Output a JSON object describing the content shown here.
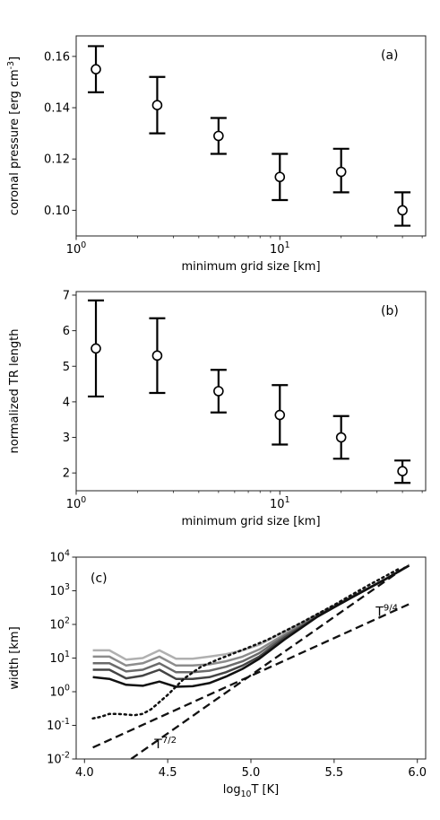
{
  "chart_data": [
    {
      "type": "scatter",
      "panel_label": "(a)",
      "xlabel": "minimum grid size [km]",
      "ylabel": "coronal pressure [erg cm^-3]",
      "xscale": "log",
      "xlim": [
        1,
        52
      ],
      "ylim": [
        0.09,
        0.168
      ],
      "xticks": [
        {
          "value": 1,
          "label": "10^0"
        },
        {
          "value": 10,
          "label": "10^1"
        }
      ],
      "yticks": [
        0.1,
        0.12,
        0.14,
        0.16
      ],
      "ytick_labels": [
        "0.10",
        "0.12",
        "0.14",
        "0.16"
      ],
      "points": [
        {
          "x": 1.25,
          "y": 0.155,
          "err_low": 0.146,
          "err_high": 0.164
        },
        {
          "x": 2.5,
          "y": 0.141,
          "err_low": 0.13,
          "err_high": 0.152
        },
        {
          "x": 5,
          "y": 0.129,
          "err_low": 0.122,
          "err_high": 0.136
        },
        {
          "x": 10,
          "y": 0.113,
          "err_low": 0.104,
          "err_high": 0.122
        },
        {
          "x": 20,
          "y": 0.115,
          "err_low": 0.107,
          "err_high": 0.124
        },
        {
          "x": 40,
          "y": 0.1,
          "err_low": 0.094,
          "err_high": 0.107
        }
      ]
    },
    {
      "type": "scatter",
      "panel_label": "(b)",
      "xlabel": "minimum grid size [km]",
      "ylabel": "normalized TR length",
      "xscale": "log",
      "xlim": [
        1,
        52
      ],
      "ylim": [
        1.5,
        7.1
      ],
      "xticks": [
        {
          "value": 1,
          "label": "10^0"
        },
        {
          "value": 10,
          "label": "10^1"
        }
      ],
      "yticks": [
        2,
        3,
        4,
        5,
        6,
        7
      ],
      "ytick_labels": [
        "2",
        "3",
        "4",
        "5",
        "6",
        "7"
      ],
      "points": [
        {
          "x": 1.25,
          "y": 5.5,
          "err_low": 4.15,
          "err_high": 6.85
        },
        {
          "x": 2.5,
          "y": 5.3,
          "err_low": 4.25,
          "err_high": 6.35
        },
        {
          "x": 5,
          "y": 4.3,
          "err_low": 3.7,
          "err_high": 4.9
        },
        {
          "x": 10,
          "y": 3.63,
          "err_low": 2.8,
          "err_high": 4.47
        },
        {
          "x": 20,
          "y": 3.0,
          "err_low": 2.4,
          "err_high": 3.6
        },
        {
          "x": 40,
          "y": 2.05,
          "err_low": 1.72,
          "err_high": 2.35
        }
      ]
    },
    {
      "type": "line",
      "panel_label": "(c)",
      "xlabel": "log10T [K]",
      "ylabel": "width [km]",
      "yscale": "log",
      "xlim": [
        3.95,
        6.05
      ],
      "ylim": [
        0.01,
        10000
      ],
      "xticks": [
        4.0,
        4.5,
        5.0,
        5.5,
        6.0
      ],
      "xtick_labels": [
        "4.0",
        "4.5",
        "5.0",
        "5.5",
        "6.0"
      ],
      "yticks": [
        {
          "value": 0.01,
          "label": "10^-2"
        },
        {
          "value": 0.1,
          "label": "10^-1"
        },
        {
          "value": 1,
          "label": "10^0"
        },
        {
          "value": 10,
          "label": "10^1"
        },
        {
          "value": 100,
          "label": "10^2"
        },
        {
          "value": 1000,
          "label": "10^3"
        },
        {
          "value": 10000,
          "label": "10^4"
        }
      ],
      "annotations": [
        {
          "text": "T^9/4",
          "x": 5.75,
          "y": 180
        },
        {
          "text": "T^7/2",
          "x": 4.42,
          "y": 0.021
        }
      ],
      "series": [
        {
          "style": "gray-5",
          "color": "#b0b0b0",
          "x": [
            4.05,
            4.15,
            4.25,
            4.35,
            4.45,
            4.55,
            4.65,
            4.75,
            4.85,
            4.95,
            5.05,
            5.2,
            5.4,
            5.6,
            5.8,
            5.95
          ],
          "y": [
            17,
            17,
            9,
            10,
            17,
            9.5,
            9.5,
            11,
            13,
            17,
            25,
            60,
            200,
            650,
            2100,
            5600
          ]
        },
        {
          "style": "gray-4",
          "color": "#8c8c8c",
          "x": [
            4.05,
            4.15,
            4.25,
            4.35,
            4.45,
            4.55,
            4.65,
            4.75,
            4.85,
            4.95,
            5.05,
            5.2,
            5.4,
            5.6,
            5.8,
            5.95
          ],
          "y": [
            11,
            11,
            6,
            7,
            11,
            6,
            6,
            6.5,
            8,
            11,
            18,
            50,
            190,
            640,
            2100,
            5600
          ]
        },
        {
          "style": "gray-3",
          "color": "#6b6b6b",
          "x": [
            4.05,
            4.15,
            4.25,
            4.35,
            4.45,
            4.55,
            4.65,
            4.75,
            4.85,
            4.95,
            5.05,
            5.2,
            5.4,
            5.6,
            5.8,
            5.95
          ],
          "y": [
            7,
            7,
            4,
            4.5,
            7,
            3.8,
            3.8,
            4.2,
            5.5,
            8,
            14,
            45,
            180,
            630,
            2100,
            5600
          ]
        },
        {
          "style": "gray-2",
          "color": "#444444",
          "x": [
            4.05,
            4.15,
            4.25,
            4.35,
            4.45,
            4.55,
            4.65,
            4.75,
            4.85,
            4.95,
            5.05,
            5.2,
            5.4,
            5.6,
            5.8,
            5.95
          ],
          "y": [
            4.5,
            4.5,
            2.5,
            3,
            4.5,
            2.4,
            2.4,
            2.7,
            3.8,
            6,
            11,
            40,
            175,
            620,
            2100,
            5600
          ]
        },
        {
          "style": "black",
          "color": "#111111",
          "x": [
            4.05,
            4.15,
            4.25,
            4.35,
            4.45,
            4.55,
            4.65,
            4.75,
            4.85,
            4.95,
            5.05,
            5.2,
            5.4,
            5.6,
            5.8,
            5.95
          ],
          "y": [
            2.7,
            2.4,
            1.6,
            1.5,
            2.0,
            1.4,
            1.45,
            1.8,
            2.8,
            4.8,
            9.5,
            35,
            170,
            610,
            2100,
            5600
          ]
        },
        {
          "style": "dotted",
          "color": "#111111",
          "x": [
            4.05,
            4.1,
            4.15,
            4.2,
            4.3,
            4.35,
            4.4,
            4.5,
            4.6,
            4.7,
            4.8,
            4.9,
            5.0,
            5.1,
            5.3,
            5.5,
            5.7,
            5.9
          ],
          "y": [
            0.16,
            0.18,
            0.22,
            0.22,
            0.2,
            0.22,
            0.3,
            0.8,
            2.5,
            5.5,
            9,
            14,
            22,
            35,
            110,
            380,
            1400,
            4800
          ]
        },
        {
          "style": "dashed",
          "name": "T^9/4",
          "color": "#111111",
          "x": [
            4.05,
            5.95
          ],
          "y": [
            0.022,
            400
          ]
        },
        {
          "style": "dashed",
          "name": "T^7/2",
          "color": "#111111",
          "x": [
            4.28,
            5.95
          ],
          "y": [
            0.01,
            6000
          ]
        }
      ]
    }
  ]
}
